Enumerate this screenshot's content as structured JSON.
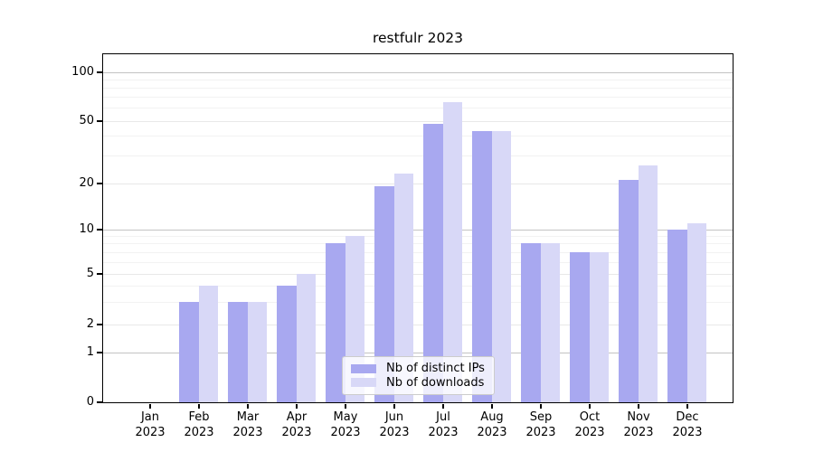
{
  "title": "restfulr 2023",
  "chart_data": {
    "type": "bar",
    "title": "restfulr 2023",
    "yscale": "symlog",
    "grid": true,
    "legend_position": "lower center",
    "ylim": [
      0,
      130
    ],
    "categories": [
      "Jan",
      "Feb",
      "Mar",
      "Apr",
      "May",
      "Jun",
      "Jul",
      "Aug",
      "Sep",
      "Oct",
      "Nov",
      "Dec"
    ],
    "x_tick_second_line": "2023",
    "y_ticks": [
      0,
      1,
      2,
      5,
      10,
      20,
      50,
      100
    ],
    "y_tick_labels": [
      "0",
      "1",
      "2",
      "5",
      "10",
      "20",
      "50",
      "100"
    ],
    "y_minor_gridlines": [
      3,
      4,
      6,
      7,
      8,
      9,
      30,
      40,
      60,
      70,
      80,
      90
    ],
    "series": [
      {
        "name": "Nb of distinct IPs",
        "color": "#a8a8f0",
        "values": [
          0,
          3,
          3,
          4,
          8,
          19,
          48,
          43,
          8,
          7,
          21,
          10
        ]
      },
      {
        "name": "Nb of downloads",
        "color": "#d8d8f7",
        "values": [
          0,
          4,
          3,
          5,
          9,
          23,
          65,
          43,
          8,
          7,
          26,
          11
        ]
      }
    ]
  },
  "colors": {
    "background": "#ffffff",
    "spine": "#000000",
    "grid_decade": "#c3c3c3",
    "grid_major": "#e8e8e8",
    "grid_minor": "#f2f2f2",
    "text": "#000000",
    "legend_border": "#cccccc"
  }
}
